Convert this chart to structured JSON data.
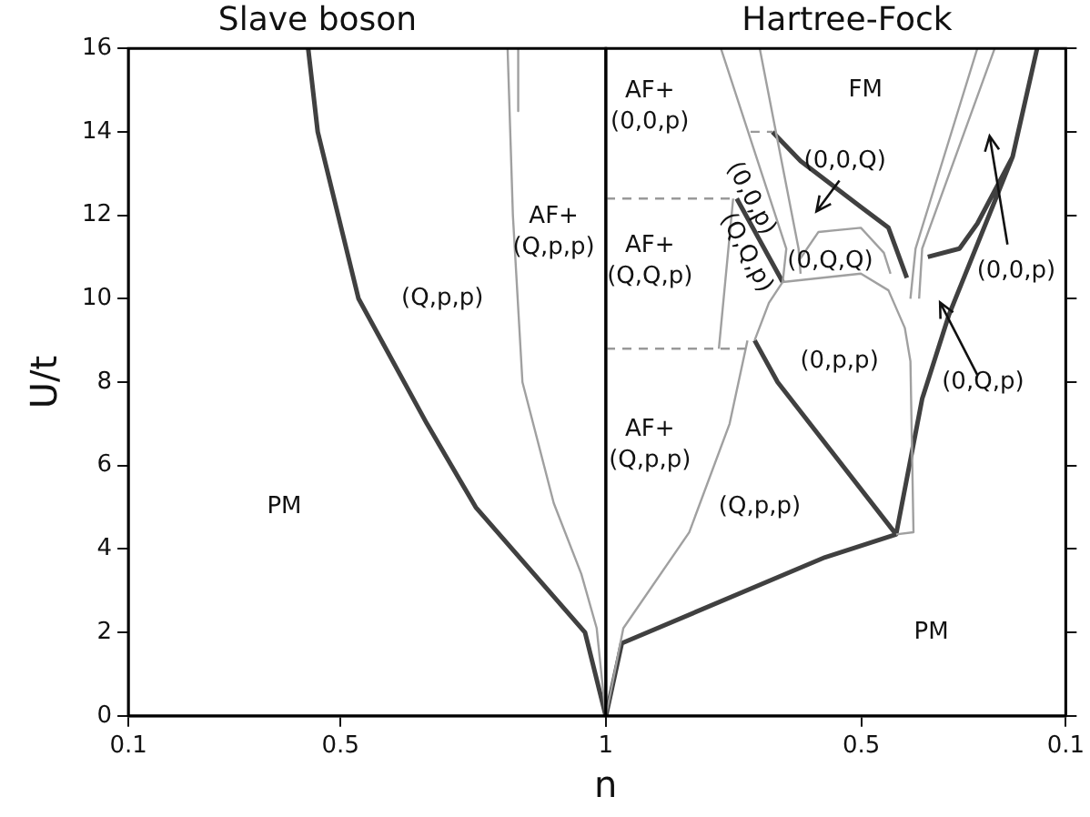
{
  "chart_data": [
    {
      "type": "line",
      "title": "Slave boson",
      "xlabel": "n",
      "ylabel": "U/t",
      "xlim": [
        0.1,
        1
      ],
      "ylim": [
        0,
        16
      ],
      "xticks": [
        0.1,
        0.5,
        1
      ],
      "yticks": [
        0,
        2,
        4,
        6,
        8,
        10,
        12,
        14,
        16
      ],
      "grid": false,
      "legend": false,
      "marker": "none",
      "series": [
        {
          "color": "#404040",
          "x": [
            1.0,
            0.961,
            0.755,
            0.663,
            0.534,
            0.457,
            0.439
          ],
          "values": [
            0,
            2,
            5,
            7,
            10,
            14,
            16
          ]
        },
        {
          "color": "#a0a0a0",
          "x": [
            1.0,
            0.983,
            0.954,
            0.902,
            0.843,
            0.825,
            0.815,
            null,
            0.835,
            0.835
          ],
          "values": [
            0,
            2.1,
            3.4,
            5.1,
            8,
            12,
            16,
            null,
            16,
            14.5
          ]
        }
      ],
      "annotations": [
        "PM",
        "(Q,p,p)",
        "AF+ (Q,p,p)"
      ]
    },
    {
      "type": "line",
      "title": "Hartree-Fock",
      "xlim": [
        1,
        0.1
      ],
      "ylim": [
        0,
        16
      ],
      "xticks": [
        {
          "value": 1,
          "label": null
        },
        0.5,
        0.1
      ],
      "yticks": [
        0,
        2,
        4,
        6,
        8,
        10,
        12,
        14,
        16
      ],
      "tick_labels": "x",
      "grid": false,
      "legend": false,
      "marker": "none",
      "series": [
        {
          "color": "#404040",
          "x": [
            1,
            0.969,
            0.571,
            0.432,
            0.381,
            0.329,
            0.204,
            0.156,
            null,
            0.37,
            0.308,
            0.273,
            0.204,
            null,
            0.432,
            0.664,
            0.709,
            null,
            0.744,
            0.654,
            null,
            0.674,
            0.619,
            0.501,
            0.447,
            0.411
          ],
          "values": [
            0,
            1.74,
            3.8,
            4.35,
            7.6,
            9.6,
            13.4,
            16,
            null,
            11.0,
            11.2,
            11.8,
            13.4,
            null,
            4.35,
            8.0,
            9.0,
            null,
            12.4,
            10.4,
            null,
            14,
            13.3,
            12.2,
            11.7,
            10.5
          ]
        },
        {
          "color": "#a0a0a0",
          "x": [
            1,
            0.966,
            0.837,
            0.758,
            0.723,
            null,
            0.779,
            0.751,
            null,
            0.775,
            0.647,
            0.654,
            null,
            0.699,
            0.623,
            0.619,
            null,
            0.273,
            0.394,
            0.404,
            null,
            0.239,
            0.381,
            0.387,
            null,
            0.623,
            0.584,
            0.501,
            0.456,
            0.443,
            null,
            0.654,
            0.501,
            0.447,
            0.415,
            0.404,
            0.398,
            0.432,
            null,
            0.654,
            0.681,
            0.709
          ],
          "values": [
            0,
            2.1,
            4.4,
            7.0,
            9.0,
            null,
            8.8,
            12.4,
            null,
            16,
            11.2,
            10.4,
            null,
            16,
            11.2,
            10.6,
            null,
            16,
            11.2,
            10.0,
            null,
            16,
            11.2,
            10.0,
            null,
            10.9,
            11.6,
            11.7,
            11.1,
            10.6,
            null,
            10.4,
            10.6,
            10.2,
            9.3,
            8.5,
            4.4,
            4.35,
            null,
            10.4,
            9.9,
            9.0
          ]
        },
        {
          "color": "#999999",
          "line_style": "dashed",
          "x": [
            1,
            0.723,
            null,
            1,
            0.744,
            null,
            0.717,
            0.674
          ],
          "values": [
            8.8,
            8.8,
            null,
            12.4,
            12.4,
            null,
            14,
            14
          ]
        }
      ],
      "annotations": [
        "AF+ (0,0,p)",
        "FM",
        "(0,0,Q)",
        "(0,0,p)",
        "(Q,Q,p)",
        "(0,Q,Q)",
        "AF+ (Q,Q,p)",
        "(0,p,p)",
        "AF+ (Q,p,p)",
        "(Q,p,p)",
        "PM",
        "(0,0,p)",
        "(0,Q,p)"
      ]
    }
  ]
}
